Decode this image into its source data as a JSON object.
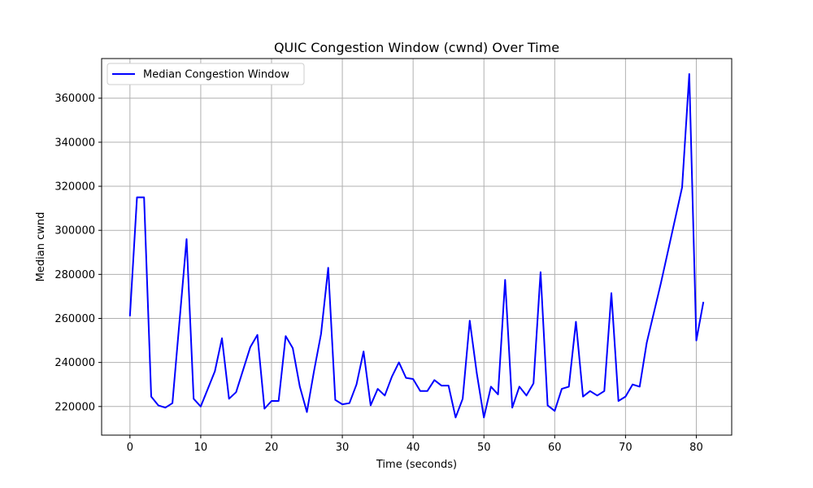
{
  "chart_data": {
    "type": "line",
    "title": "QUIC Congestion Window (cwnd) Over Time",
    "xlabel": "Time (seconds)",
    "ylabel": "Median cwnd",
    "xlim": [
      -4,
      85
    ],
    "ylim": [
      207000,
      378000
    ],
    "xticks": [
      0,
      10,
      20,
      30,
      40,
      50,
      60,
      70,
      80
    ],
    "yticks": [
      220000,
      240000,
      260000,
      280000,
      300000,
      320000,
      340000,
      360000
    ],
    "grid": true,
    "legend_position": "top-left",
    "series": [
      {
        "name": "Median Congestion Window",
        "color": "#0000ff",
        "x": [
          0,
          1,
          2,
          3,
          4,
          5,
          6,
          8,
          9,
          10,
          12,
          13,
          14,
          15,
          17,
          18,
          19,
          20,
          21,
          22,
          23,
          24,
          25,
          26,
          27,
          28,
          29,
          30,
          31,
          32,
          33,
          34,
          35,
          36,
          37,
          38,
          39,
          40,
          41,
          42,
          43,
          44,
          45,
          46,
          47,
          48,
          49,
          50,
          51,
          52,
          53,
          54,
          55,
          56,
          57,
          58,
          59,
          60,
          61,
          62,
          63,
          64,
          65,
          66,
          67,
          68,
          69,
          70,
          71,
          72,
          73,
          75,
          78,
          79,
          80,
          81
        ],
        "y": [
          261000,
          315000,
          315000,
          224500,
          220500,
          219500,
          221500,
          296000,
          223500,
          220000,
          236000,
          251000,
          223500,
          226500,
          247000,
          252500,
          219000,
          222500,
          222500,
          252000,
          246500,
          229000,
          217500,
          236000,
          253000,
          283000,
          223000,
          221000,
          221500,
          230000,
          245000,
          220500,
          228000,
          225000,
          233500,
          240000,
          233000,
          232500,
          227000,
          227000,
          232000,
          229500,
          229500,
          215000,
          223500,
          259000,
          235000,
          215000,
          229000,
          225500,
          277500,
          219500,
          229000,
          225000,
          230500,
          281000,
          220500,
          218000,
          228000,
          229000,
          258500,
          224500,
          227000,
          225000,
          227000,
          271500,
          222500,
          224500,
          230000,
          229000,
          249000,
          276000,
          319500,
          371000,
          250000,
          267500
        ]
      }
    ]
  }
}
